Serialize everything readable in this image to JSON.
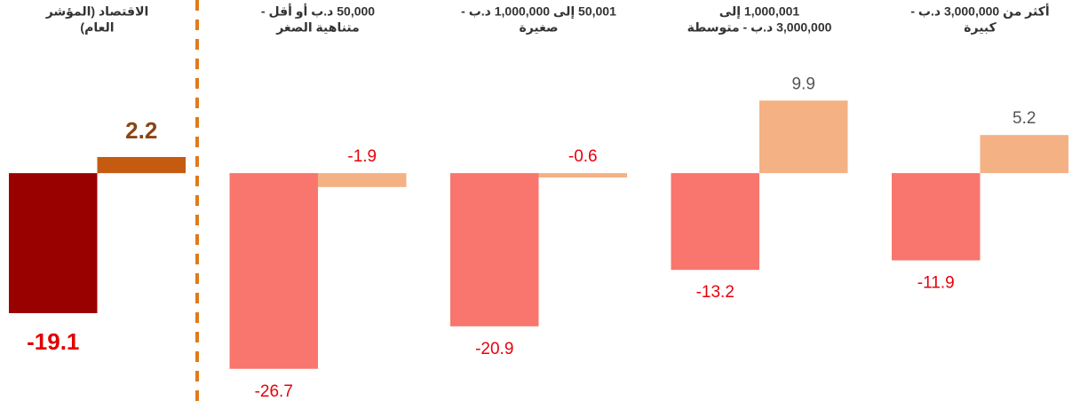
{
  "chart_data": {
    "type": "bar",
    "categories": [
      [
        "الاقتصاد (المؤشر",
        "العام)"
      ],
      [
        "50,000 د.ب أو أقل -",
        "متناهية الصغر"
      ],
      [
        "50,001 إلى 1,000,000 د.ب -",
        "صغيرة"
      ],
      [
        "1,000,001 إلى",
        "3,000,000 د.ب - متوسطة"
      ],
      [
        "أكثر من 3,000,000 د.ب -",
        "كبيرة"
      ]
    ],
    "series": [
      {
        "colors": [
          "#990000",
          "#f8766d",
          "#f8766d",
          "#f8766d",
          "#f8766d"
        ],
        "label_colors": [
          "#e00000",
          "#e8000b",
          "#e8000b",
          "#e8000b",
          "#e8000b"
        ],
        "values": [
          -19.1,
          -26.7,
          -20.9,
          -13.2,
          -11.9
        ]
      },
      {
        "colors": [
          "#c55a11",
          "#f4b183",
          "#f4b183",
          "#f4b183",
          "#f4b183"
        ],
        "label_colors": [
          "#8b4513",
          "#e8000b",
          "#e8000b",
          "#555555",
          "#555555"
        ],
        "values": [
          2.2,
          -1.9,
          -0.6,
          9.9,
          5.2
        ]
      }
    ],
    "ylim": [
      -30,
      12
    ]
  }
}
